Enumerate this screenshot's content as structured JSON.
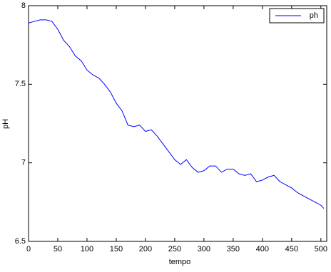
{
  "chart_data": {
    "type": "line",
    "x_label": "tempo",
    "y_label": "pH",
    "x": [
      0,
      10,
      20,
      30,
      40,
      50,
      60,
      70,
      80,
      90,
      100,
      110,
      120,
      130,
      140,
      150,
      160,
      170,
      180,
      190,
      200,
      210,
      220,
      230,
      240,
      250,
      260,
      270,
      280,
      290,
      300,
      310,
      320,
      330,
      340,
      350,
      360,
      370,
      380,
      390,
      400,
      410,
      420,
      430,
      440,
      450,
      460,
      470,
      480,
      490,
      500,
      505
    ],
    "series": [
      {
        "name": "ph",
        "color": "#0000ff",
        "values": [
          7.89,
          7.9,
          7.91,
          7.91,
          7.9,
          7.85,
          7.78,
          7.74,
          7.68,
          7.65,
          7.59,
          7.56,
          7.54,
          7.5,
          7.45,
          7.38,
          7.33,
          7.24,
          7.23,
          7.24,
          7.2,
          7.21,
          7.17,
          7.12,
          7.07,
          7.02,
          6.99,
          7.02,
          6.97,
          6.94,
          6.95,
          6.98,
          6.98,
          6.94,
          6.96,
          6.96,
          6.93,
          6.92,
          6.93,
          6.88,
          6.89,
          6.91,
          6.92,
          6.88,
          6.86,
          6.84,
          6.81,
          6.79,
          6.77,
          6.75,
          6.73,
          6.71
        ]
      }
    ],
    "xlim": [
      0,
      510
    ],
    "ylim": [
      6.5,
      8
    ],
    "xticks": [
      0,
      50,
      100,
      150,
      200,
      250,
      300,
      350,
      400,
      450,
      500
    ],
    "yticks": [
      6.5,
      7,
      7.5,
      8
    ],
    "legend": "top-right"
  }
}
